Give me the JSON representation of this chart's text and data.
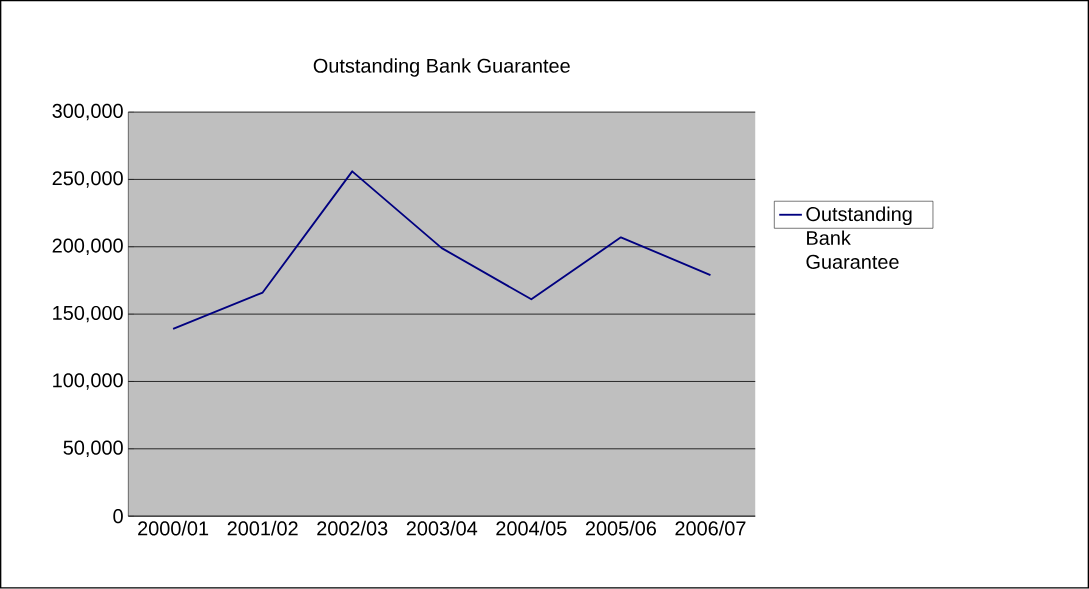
{
  "chart_data": {
    "type": "line",
    "title": "Outstanding Bank Guarantee",
    "categories": [
      "2000/01",
      "2001/02",
      "2002/03",
      "2003/04",
      "2004/05",
      "2005/06",
      "2006/07"
    ],
    "series": [
      {
        "name": "Outstanding Bank Guarantee",
        "color": "#000080",
        "values": [
          139000,
          166000,
          256000,
          199000,
          161000,
          207000,
          179000
        ]
      }
    ],
    "ylim": [
      0,
      300000
    ],
    "yticks": [
      {
        "value": 0,
        "label": "0"
      },
      {
        "value": 50000,
        "label": "50,000"
      },
      {
        "value": 100000,
        "label": "100,000"
      },
      {
        "value": 150000,
        "label": "150,000"
      },
      {
        "value": 200000,
        "label": "200,000"
      },
      {
        "value": 250000,
        "label": "250,000"
      },
      {
        "value": 300000,
        "label": "300,000"
      }
    ],
    "grid": "y",
    "legend": "right",
    "marker": "none"
  }
}
